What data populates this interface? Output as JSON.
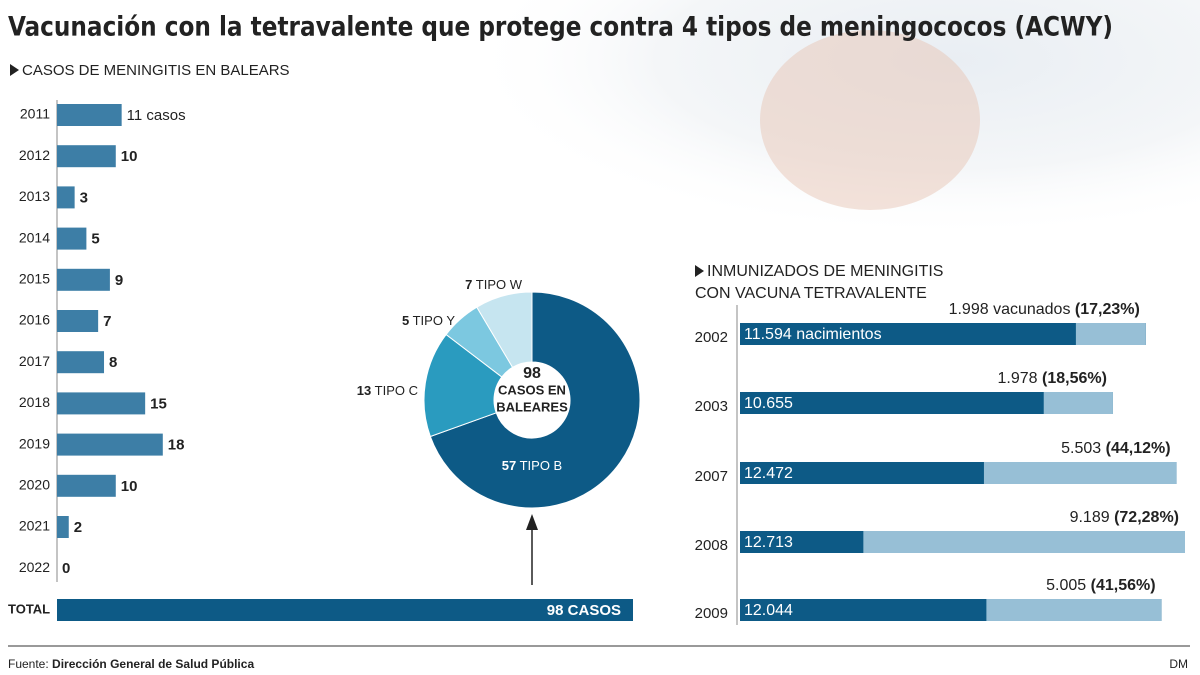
{
  "chart_data": [
    {
      "type": "bar",
      "title": "Vacunación con la tetravalente que protege contra 4 tipos de meningococos (ACWY)",
      "subtitle": "CASOS DE MENINGITIS EN BALEARS",
      "categories": [
        "2011",
        "2012",
        "2013",
        "2014",
        "2015",
        "2016",
        "2017",
        "2018",
        "2019",
        "2020",
        "2021",
        "2022"
      ],
      "values": [
        11,
        10,
        3,
        5,
        9,
        7,
        8,
        15,
        18,
        10,
        2,
        0
      ],
      "value_labels": [
        "11 casos",
        "10",
        "3",
        "5",
        "9",
        "7",
        "8",
        "15",
        "18",
        "10",
        "2",
        "0"
      ],
      "color": "#3d7ea6",
      "total": {
        "label": "TOTAL",
        "value": 98,
        "value_label": "98 CASOS",
        "color": "#0d5a86"
      },
      "source_label": "Fuente:",
      "source": "Dirección General de Salud Pública",
      "credit": "DM"
    },
    {
      "type": "pie",
      "categories": [
        "TIPO B",
        "TIPO C",
        "TIPO Y",
        "TIPO W"
      ],
      "values": [
        57,
        13,
        5,
        7
      ],
      "colors": [
        "#0d5a86",
        "#2a9bbf",
        "#7cc8e0",
        "#c6e5f0"
      ],
      "center_label": [
        "98",
        "CASOS EN",
        "BALEARES"
      ]
    },
    {
      "type": "hbar_overlay",
      "title": [
        "INMUNIZADOS DE MENINGITIS",
        "CON VACUNA TETRAVALENTE"
      ],
      "categories": [
        "2002",
        "2003",
        "2007",
        "2008",
        "2009"
      ],
      "series": [
        {
          "name": "nacimientos",
          "color": "#0d5a86",
          "values": [
            11594,
            10655,
            12472,
            12713,
            12044
          ],
          "value_labels": [
            "11.594 nacimientos",
            "10.655",
            "12.472",
            "12.713",
            "12.044"
          ]
        },
        {
          "name": "vacunados",
          "color": "#97bfd6",
          "values": [
            1998,
            1978,
            5503,
            9189,
            5005
          ],
          "value_labels": [
            "1.998 vacunados",
            "1.978",
            "5.503",
            "9.189",
            "5.005"
          ]
        }
      ],
      "percent": {
        "values": [
          17.23,
          18.56,
          44.12,
          72.28,
          41.56
        ],
        "value_labels": [
          "(17,23%)",
          "(18,56%)",
          "(44,12%)",
          "(72,28%)",
          "(41,56%)"
        ]
      }
    }
  ]
}
